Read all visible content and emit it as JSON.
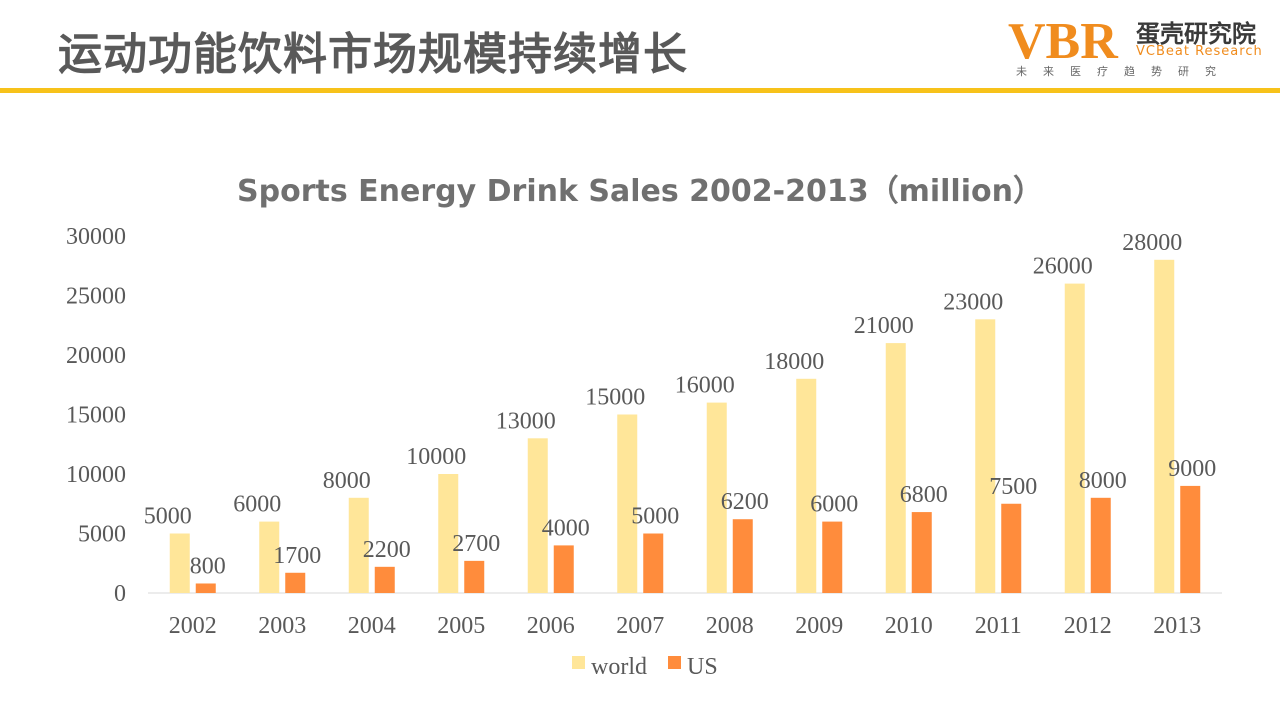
{
  "header": {
    "title": "运动功能饮料市场规模持续增长"
  },
  "logo": {
    "mark": "VBR",
    "name_cn": "蛋壳研究院",
    "name_en": "VCBeat Research",
    "tagline": "未来医疗趋势研究"
  },
  "colors": {
    "accent": "#f7c21a",
    "world": "#ffe699",
    "us": "#ff8c3c",
    "logo_orange": "#f08c1e",
    "text": "#595959"
  },
  "chart_data": {
    "type": "bar",
    "title": "Sports Energy Drink Sales 2002-2013（million）",
    "xlabel": "",
    "ylabel": "",
    "categories": [
      "2002",
      "2003",
      "2004",
      "2005",
      "2006",
      "2007",
      "2008",
      "2009",
      "2010",
      "2011",
      "2012",
      "2013"
    ],
    "series": [
      {
        "name": "world",
        "values": [
          5000,
          6000,
          8000,
          10000,
          13000,
          15000,
          16000,
          18000,
          21000,
          23000,
          26000,
          28000
        ]
      },
      {
        "name": "US",
        "values": [
          800,
          1700,
          2200,
          2700,
          4000,
          5000,
          6200,
          6000,
          6800,
          7500,
          8000,
          9000
        ]
      }
    ],
    "ylim": [
      0,
      30000
    ],
    "yticks": [
      0,
      5000,
      10000,
      15000,
      20000,
      25000,
      30000
    ],
    "grid": false,
    "legend": "bottom"
  }
}
